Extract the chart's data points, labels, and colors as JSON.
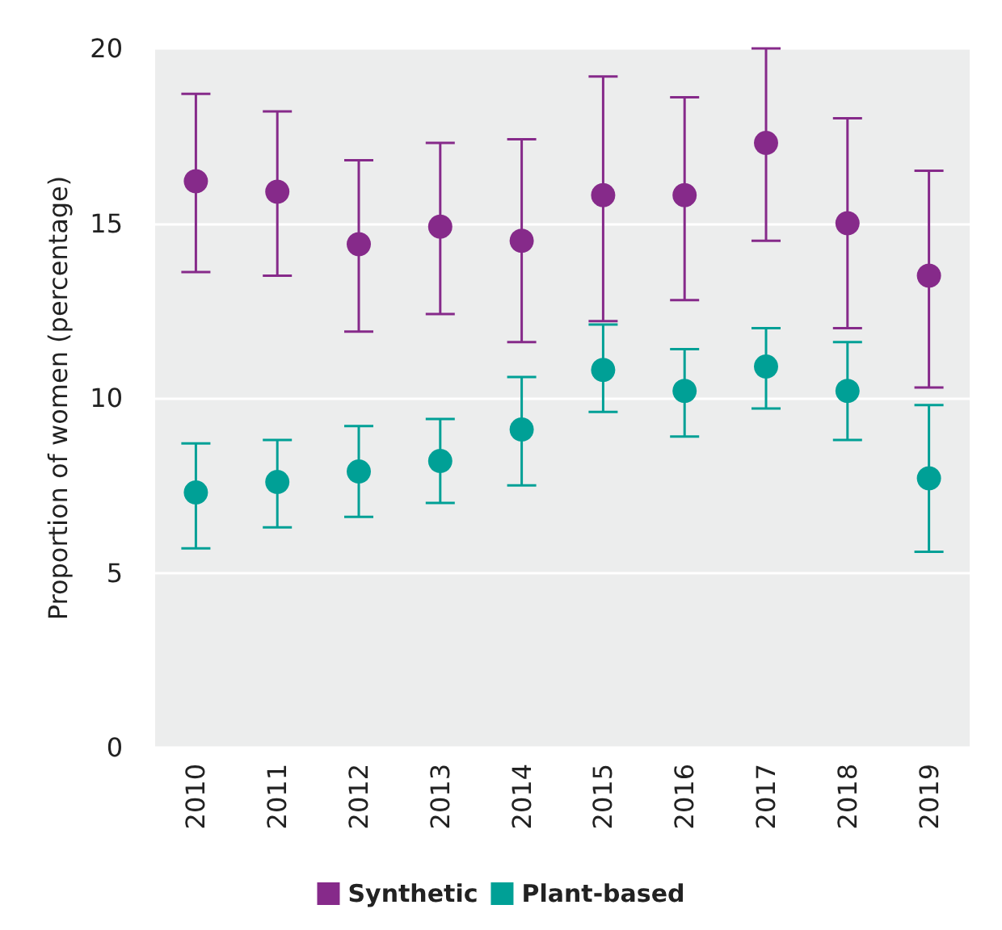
{
  "chart_data": {
    "type": "scatter",
    "ylabel": "Proportion of women (percentage)",
    "categories": [
      "2010",
      "2011",
      "2012",
      "2013",
      "2014",
      "2015",
      "2016",
      "2017",
      "2018",
      "2019"
    ],
    "series": [
      {
        "name": "Synthetic",
        "color": "#862a8a",
        "values": [
          16.2,
          15.9,
          14.4,
          14.9,
          14.5,
          15.8,
          15.8,
          17.3,
          15.0,
          13.5
        ],
        "errors": [
          [
            13.6,
            18.7
          ],
          [
            13.5,
            18.2
          ],
          [
            11.9,
            16.8
          ],
          [
            12.4,
            17.3
          ],
          [
            11.6,
            17.4
          ],
          [
            12.2,
            19.2
          ],
          [
            12.8,
            18.6
          ],
          [
            14.5,
            20.0
          ],
          [
            12.0,
            18.0
          ],
          [
            10.3,
            16.5
          ]
        ]
      },
      {
        "name": "Plant-based",
        "color": "#00a096",
        "values": [
          7.3,
          7.6,
          7.9,
          8.2,
          9.1,
          10.8,
          10.2,
          10.9,
          10.2,
          7.7
        ],
        "errors": [
          [
            5.7,
            8.7
          ],
          [
            6.3,
            8.8
          ],
          [
            6.6,
            9.2
          ],
          [
            7.0,
            9.4
          ],
          [
            7.5,
            10.6
          ],
          [
            9.6,
            12.1
          ],
          [
            8.9,
            11.4
          ],
          [
            9.7,
            12.0
          ],
          [
            8.8,
            11.6
          ],
          [
            5.6,
            9.8
          ]
        ]
      }
    ],
    "ylim": [
      0,
      20
    ],
    "yticks": [
      0,
      5,
      10,
      15,
      20
    ],
    "grid": "y",
    "legend": "bottom",
    "marker": "circle"
  }
}
